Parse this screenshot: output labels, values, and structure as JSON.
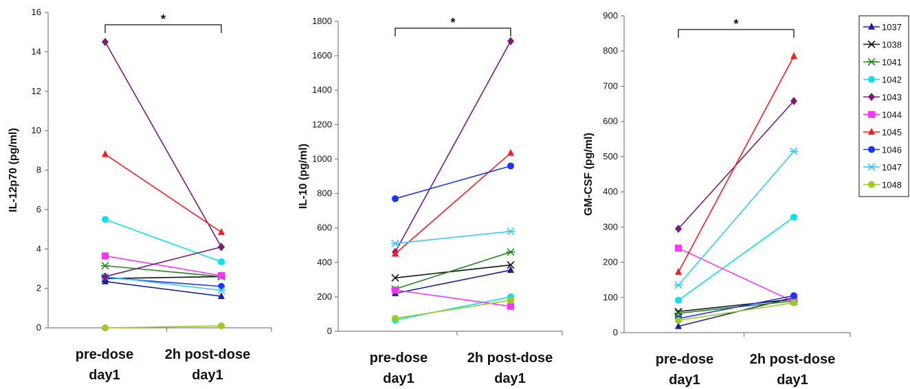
{
  "legend": {
    "position": "top-right",
    "entries": [
      {
        "name": "1037",
        "color": "#1f1f9a",
        "marker": "triangle"
      },
      {
        "name": "1038",
        "color": "#111111",
        "marker": "x"
      },
      {
        "name": "1041",
        "color": "#1e8a1e",
        "marker": "star"
      },
      {
        "name": "1042",
        "color": "#00e5ee",
        "marker": "circle"
      },
      {
        "name": "1043",
        "color": "#7b1a7b",
        "marker": "diamond"
      },
      {
        "name": "1044",
        "color": "#ff33ff",
        "marker": "square"
      },
      {
        "name": "1045",
        "color": "#ff1a1a",
        "marker": "triangle"
      },
      {
        "name": "1046",
        "color": "#1a33ff",
        "marker": "circle"
      },
      {
        "name": "1047",
        "color": "#33ccff",
        "marker": "star"
      },
      {
        "name": "1048",
        "color": "#99cc22",
        "marker": "circle"
      }
    ]
  },
  "chart_data": [
    {
      "type": "line",
      "categories": [
        "pre-dose day1",
        "2h post-dose day1"
      ],
      "category_lines": [
        [
          "pre-dose",
          "day1"
        ],
        [
          "2h post-dose",
          "day1"
        ]
      ],
      "ylabel": "IL-12p70 (pg/ml)",
      "ylim": [
        0,
        16
      ],
      "yticks": [
        0,
        2,
        4,
        6,
        8,
        10,
        12,
        14,
        16
      ],
      "significance": "*",
      "series": [
        {
          "name": "1037",
          "values": [
            2.35,
            1.6
          ]
        },
        {
          "name": "1038",
          "values": [
            2.5,
            2.6
          ]
        },
        {
          "name": "1041",
          "values": [
            3.15,
            2.6
          ]
        },
        {
          "name": "1042",
          "values": [
            5.5,
            3.35
          ]
        },
        {
          "name": "1043",
          "values": [
            14.5,
            4.1
          ]
        },
        {
          "name": "1044",
          "values": [
            3.65,
            2.65
          ]
        },
        {
          "name": "1045",
          "values": [
            8.8,
            4.85
          ]
        },
        {
          "name": "1046",
          "values": [
            2.55,
            2.1
          ]
        },
        {
          "name": "1047",
          "values": [
            2.6,
            1.9
          ]
        },
        {
          "name": "1048",
          "values": [
            0.0,
            0.1
          ]
        },
        {
          "name": "1043",
          "values": [
            2.6,
            4.1
          ]
        }
      ]
    },
    {
      "type": "line",
      "categories": [
        "pre-dose day1",
        "2h post-dose day1"
      ],
      "category_lines": [
        [
          "pre-dose",
          "day1"
        ],
        [
          "2h post-dose",
          "day1"
        ]
      ],
      "ylabel": "IL-10 (pg/ml)",
      "ylim": [
        0,
        1800
      ],
      "yticks": [
        0,
        200,
        400,
        600,
        800,
        1000,
        1200,
        1400,
        1600,
        1800
      ],
      "significance": "*",
      "series": [
        {
          "name": "1037",
          "values": [
            220,
            355
          ]
        },
        {
          "name": "1038",
          "values": [
            310,
            385
          ]
        },
        {
          "name": "1041",
          "values": [
            245,
            460
          ]
        },
        {
          "name": "1042",
          "values": [
            65,
            200
          ]
        },
        {
          "name": "1043",
          "values": [
            460,
            1685
          ]
        },
        {
          "name": "1044",
          "values": [
            240,
            145
          ]
        },
        {
          "name": "1045",
          "values": [
            450,
            1035
          ]
        },
        {
          "name": "1046",
          "values": [
            770,
            960
          ]
        },
        {
          "name": "1047",
          "values": [
            510,
            580
          ]
        },
        {
          "name": "1048",
          "values": [
            75,
            180
          ]
        }
      ]
    },
    {
      "type": "line",
      "categories": [
        "pre-dose day1",
        "2h post-dose day1"
      ],
      "category_lines": [
        [
          "pre-dose",
          "day1"
        ],
        [
          "2h post-dose",
          "day1"
        ]
      ],
      "ylabel": "GM-CSF (pg/ml)",
      "ylim": [
        0,
        900
      ],
      "yticks": [
        0,
        100,
        200,
        300,
        400,
        500,
        600,
        700,
        800,
        900
      ],
      "significance": "*",
      "series": [
        {
          "name": "1037",
          "values": [
            18,
            100
          ]
        },
        {
          "name": "1038",
          "values": [
            60,
            95
          ]
        },
        {
          "name": "1041",
          "values": [
            55,
            90
          ]
        },
        {
          "name": "1042",
          "values": [
            92,
            328
          ]
        },
        {
          "name": "1043",
          "values": [
            295,
            658
          ]
        },
        {
          "name": "1044",
          "values": [
            240,
            88
          ]
        },
        {
          "name": "1045",
          "values": [
            172,
            785
          ]
        },
        {
          "name": "1046",
          "values": [
            40,
            105
          ]
        },
        {
          "name": "1047",
          "values": [
            135,
            515
          ]
        },
        {
          "name": "1048",
          "values": [
            35,
            85
          ]
        }
      ]
    }
  ]
}
